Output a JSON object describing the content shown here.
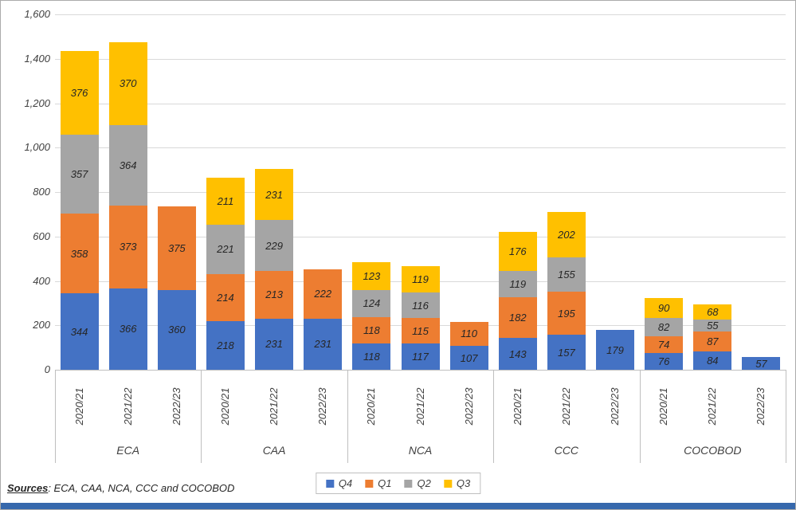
{
  "chart_data": {
    "type": "bar",
    "variant": "stacked",
    "title": "",
    "xlabel": "",
    "ylabel": "",
    "ylim": [
      0,
      1600
    ],
    "grid": true,
    "legend_position": "bottom",
    "yticks": [
      {
        "value": 0,
        "label": "0"
      },
      {
        "value": 200,
        "label": "200"
      },
      {
        "value": 400,
        "label": "400"
      },
      {
        "value": 600,
        "label": "600"
      },
      {
        "value": 800,
        "label": "800"
      },
      {
        "value": 1000,
        "label": "1,000"
      },
      {
        "value": 1200,
        "label": "1,200"
      },
      {
        "value": 1400,
        "label": "1,400"
      },
      {
        "value": 1600,
        "label": "1,600"
      }
    ],
    "series": [
      {
        "name": "Q4",
        "color": "#4472C4"
      },
      {
        "name": "Q1",
        "color": "#ED7D31"
      },
      {
        "name": "Q2",
        "color": "#A5A5A5"
      },
      {
        "name": "Q3",
        "color": "#FFC000"
      }
    ],
    "groups": [
      {
        "label": "ECA",
        "bars": [
          {
            "category": "2020/21",
            "values": [
              344,
              358,
              357,
              376
            ]
          },
          {
            "category": "2021/22",
            "values": [
              366,
              373,
              364,
              370
            ]
          },
          {
            "category": "2022/23",
            "values": [
              360,
              375
            ]
          }
        ]
      },
      {
        "label": "CAA",
        "bars": [
          {
            "category": "2020/21",
            "values": [
              218,
              214,
              221,
              211
            ]
          },
          {
            "category": "2021/22",
            "values": [
              231,
              213,
              229,
              231
            ]
          },
          {
            "category": "2022/23",
            "values": [
              231,
              222
            ]
          }
        ]
      },
      {
        "label": "NCA",
        "bars": [
          {
            "category": "2020/21",
            "values": [
              118,
              118,
              124,
              123
            ]
          },
          {
            "category": "2021/22",
            "values": [
              117,
              115,
              116,
              119
            ]
          },
          {
            "category": "2022/23",
            "values": [
              107,
              110
            ]
          }
        ]
      },
      {
        "label": "CCC",
        "bars": [
          {
            "category": "2020/21",
            "values": [
              143,
              182,
              119,
              176
            ]
          },
          {
            "category": "2021/22",
            "values": [
              157,
              195,
              155,
              202
            ]
          },
          {
            "category": "2022/23",
            "values": [
              179
            ]
          }
        ]
      },
      {
        "label": "COCOBOD",
        "bars": [
          {
            "category": "2020/21",
            "values": [
              76,
              74,
              82,
              90
            ]
          },
          {
            "category": "2021/22",
            "values": [
              84,
              87,
              55,
              68
            ]
          },
          {
            "category": "2022/23",
            "values": [
              57
            ]
          }
        ]
      }
    ]
  },
  "sources": {
    "label": "Sources",
    "text": ": ECA, CAA, NCA, CCC and COCOBOD"
  },
  "colors": {
    "bottom_strip": "#3668ac",
    "gridline": "#d9d9d9",
    "axis_line": "#bfbfbf",
    "page_border": "#ababab"
  }
}
